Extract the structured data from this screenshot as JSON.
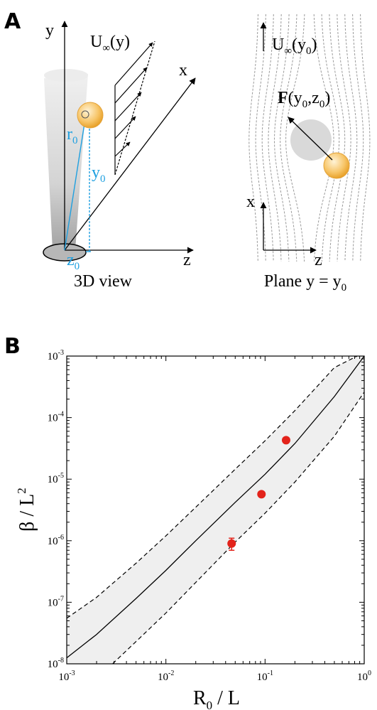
{
  "panel_a": {
    "label": "A",
    "left_view": {
      "caption": "3D view",
      "flow_label_main": "U",
      "flow_label_sub": "∞",
      "flow_label_arg": "(y)",
      "axis_y": "y",
      "axis_x": "x",
      "axis_z": "z",
      "r_main": "r",
      "r_sub": "0",
      "y_main": "y",
      "y_sub": "0",
      "z_main": "z",
      "z_sub": "0"
    },
    "right_view": {
      "caption_main": "Plane y = y",
      "caption_sub": "0",
      "flow_label_main": "U",
      "flow_label_sub": "∞",
      "flow_label_arg_open": "(y",
      "flow_label_arg_sub": "0",
      "flow_label_arg_close": ")",
      "force_main": "F",
      "force_arg_open": "(y",
      "force_arg_sub1": "0",
      "force_arg_mid": ",z",
      "force_arg_sub2": "0",
      "force_arg_close": ")",
      "axis_x": "x",
      "axis_z": "z"
    }
  },
  "panel_b": {
    "label": "B",
    "xlabel_main": "R",
    "xlabel_sub": "0",
    "xlabel_rest": " / L",
    "ylabel_main": "β / L",
    "ylabel_sup": "2"
  },
  "chart_data": {
    "type": "scatter",
    "x_scale": "log",
    "y_scale": "log",
    "xlim": [
      0.001,
      1
    ],
    "ylim": [
      1e-08,
      0.001
    ],
    "x_ticks": [
      {
        "base": "10",
        "exp": "-3",
        "value": 0.001
      },
      {
        "base": "10",
        "exp": "-2",
        "value": 0.01
      },
      {
        "base": "10",
        "exp": "-1",
        "value": 0.1
      },
      {
        "base": "10",
        "exp": "0",
        "value": 1
      }
    ],
    "y_ticks": [
      {
        "base": "10",
        "exp": "-8",
        "value": 1e-08
      },
      {
        "base": "10",
        "exp": "-7",
        "value": 1e-07
      },
      {
        "base": "10",
        "exp": "-6",
        "value": 1e-06
      },
      {
        "base": "10",
        "exp": "-5",
        "value": 1e-05
      },
      {
        "base": "10",
        "exp": "-4",
        "value": 0.0001
      },
      {
        "base": "10",
        "exp": "-3",
        "value": 0.001
      }
    ],
    "grid": false,
    "points": [
      {
        "x": 0.046,
        "y": 9e-07,
        "y_err_low": 7e-07,
        "y_err_high": 1.1e-06
      },
      {
        "x": 0.092,
        "y": 5.7e-06
      },
      {
        "x": 0.163,
        "y": 4.3e-05
      }
    ],
    "model_curve": {
      "x": [
        0.001,
        0.002,
        0.005,
        0.01,
        0.02,
        0.05,
        0.1,
        0.2,
        0.5,
        1
      ],
      "y": [
        1.25e-08,
        3e-08,
        1.15e-07,
        3.3e-07,
        1e-06,
        4.2e-06,
        1.2e-05,
        3.8e-05,
        0.00022,
        0.001
      ]
    },
    "band_upper": {
      "x": [
        0.001,
        0.002,
        0.005,
        0.01,
        0.02,
        0.05,
        0.1,
        0.2,
        0.5,
        0.85
      ],
      "y": [
        5.5e-08,
        1.2e-07,
        4.3e-07,
        1.2e-06,
        3.5e-06,
        1.45e-05,
        4.2e-05,
        0.00013,
        0.00065,
        0.001
      ]
    },
    "band_lower": {
      "x": [
        0.0029,
        0.005,
        0.01,
        0.02,
        0.05,
        0.1,
        0.2,
        0.5,
        1
      ],
      "y": [
        1e-08,
        2.3e-08,
        6.7e-08,
        2.1e-07,
        9.5e-07,
        2.8e-06,
        9e-06,
        5e-05,
        0.00026
      ]
    },
    "colors": {
      "points": "#e3231b",
      "band": "#efefef",
      "curve": "#000000",
      "highlight": "#1fa0e0",
      "particle": "#f5b945"
    }
  }
}
